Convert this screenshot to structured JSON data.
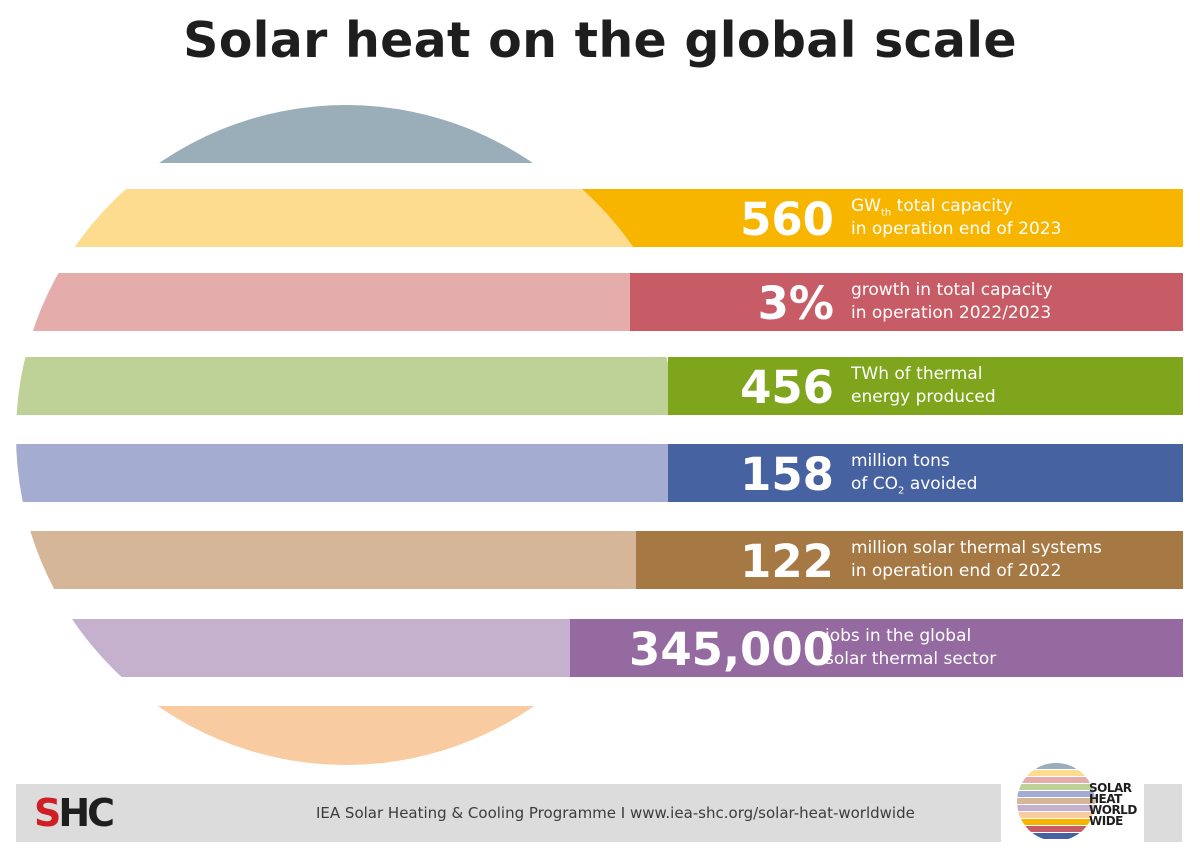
{
  "title": "Solar heat on the global scale",
  "stats": [
    {
      "value": "560",
      "unit_main": "GW",
      "unit_sub": "th",
      "line1_rest": " total capacity",
      "line2": "in operation end of 2023",
      "color": "#f8b500",
      "light": "#fddb8f"
    },
    {
      "value": "3%",
      "line1": "growth in total capacity",
      "line2": "in operation 2022/2023",
      "color": "#c85c66",
      "light": "#e4adac"
    },
    {
      "value": "456",
      "line1": "TWh of thermal",
      "line2": "energy produced",
      "color": "#7ea51b",
      "light": "#bed196"
    },
    {
      "value": "158",
      "line1": "million tons",
      "line2_pre": "of CO",
      "line2_sub": "2",
      "line2_post": " avoided",
      "color": "#4762a0",
      "light": "#a4acd2"
    },
    {
      "value": "122",
      "line1": "million solar thermal systems",
      "line2": "in operation end of 2022",
      "color": "#a67844",
      "light": "#d6b699"
    },
    {
      "value": "345,000",
      "line1": "jobs in the global",
      "line2": "solar thermal sector",
      "color": "#956aa0",
      "light": "#c5b0ce"
    }
  ],
  "globe_colors": {
    "top": "#9aaeb9",
    "bottom": "#f8cba1"
  },
  "footer": {
    "text": "IEA Solar Heating & Cooling Programme I www.iea-shc.org/solar-heat-worldwide",
    "logo_left": {
      "s": "S",
      "hc": "HC"
    },
    "logo_right": [
      "SOLAR",
      "HEAT",
      "WORLD",
      "WIDE"
    ]
  }
}
